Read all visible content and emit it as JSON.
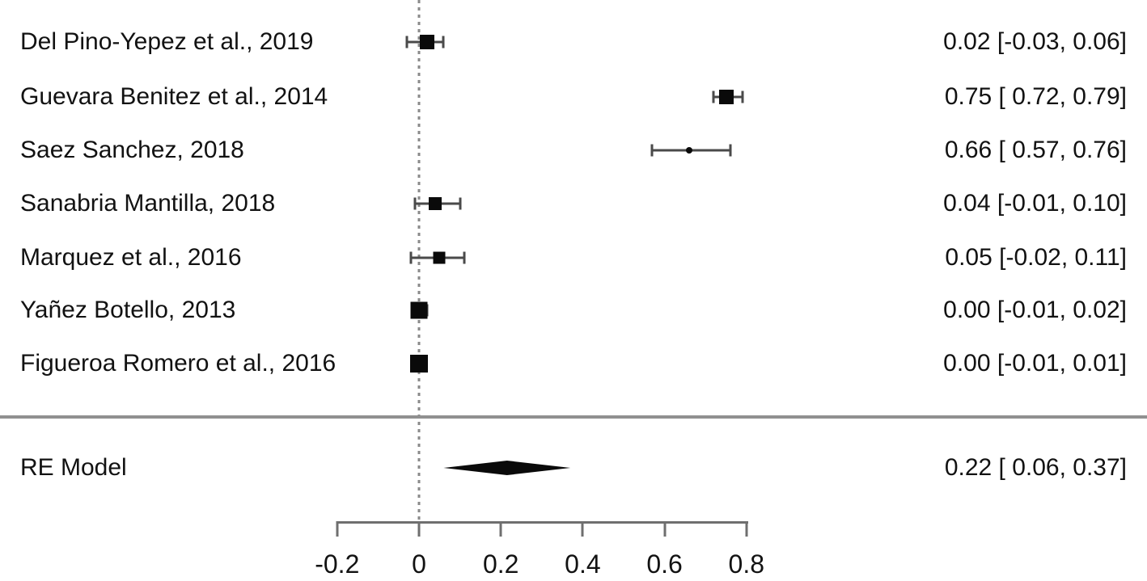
{
  "chart_data": {
    "type": "forest",
    "title": "",
    "xlabel": "",
    "x_axis": {
      "range": [
        -0.2,
        0.8
      ],
      "ticks": [
        -0.2,
        0,
        0.2,
        0.4,
        0.6,
        0.8
      ],
      "tick_labels": [
        "-0.2",
        "0",
        "0.2",
        "0.4",
        "0.6",
        "0.8"
      ],
      "reference_line": 0,
      "grid": false
    },
    "studies": [
      {
        "label": "Del Pino-Yepez et al., 2019",
        "estimate": 0.02,
        "ci_lower": -0.03,
        "ci_upper": 0.06,
        "display": "0.02 [-0.03, 0.06]",
        "marker_size_px": 18
      },
      {
        "label": "Guevara Benitez et al., 2014",
        "estimate": 0.75,
        "ci_lower": 0.72,
        "ci_upper": 0.79,
        "display": "0.75 [ 0.72, 0.79]",
        "marker_size_px": 18
      },
      {
        "label": "Saez Sanchez, 2018",
        "estimate": 0.66,
        "ci_lower": 0.57,
        "ci_upper": 0.76,
        "display": "0.66 [ 0.57, 0.76]",
        "marker_size_px": 8
      },
      {
        "label": "Sanabria Mantilla, 2018",
        "estimate": 0.04,
        "ci_lower": -0.01,
        "ci_upper": 0.1,
        "display": "0.04 [-0.01, 0.10]",
        "marker_size_px": 16
      },
      {
        "label": "Marquez et al., 2016",
        "estimate": 0.05,
        "ci_lower": -0.02,
        "ci_upper": 0.11,
        "display": "0.05 [-0.02, 0.11]",
        "marker_size_px": 15
      },
      {
        "label": "Yañez Botello, 2013",
        "estimate": 0.0,
        "ci_lower": -0.01,
        "ci_upper": 0.02,
        "display": "0.00 [-0.01, 0.02]",
        "marker_size_px": 21
      },
      {
        "label": "Figueroa Romero et al., 2016",
        "estimate": 0.0,
        "ci_lower": -0.01,
        "ci_upper": 0.01,
        "display": "0.00 [-0.01, 0.01]",
        "marker_size_px": 22
      }
    ],
    "summary": {
      "label": "RE Model",
      "estimate": 0.22,
      "ci_lower": 0.06,
      "ci_upper": 0.37,
      "display": "0.22 [ 0.06, 0.37]"
    },
    "colors": {
      "marker": "#0a0a0a",
      "ci": "#4a4a4a",
      "axis": "#6f6f6f",
      "separator": "#909090",
      "reference": "#8a8a8a",
      "text": "#121212"
    }
  }
}
